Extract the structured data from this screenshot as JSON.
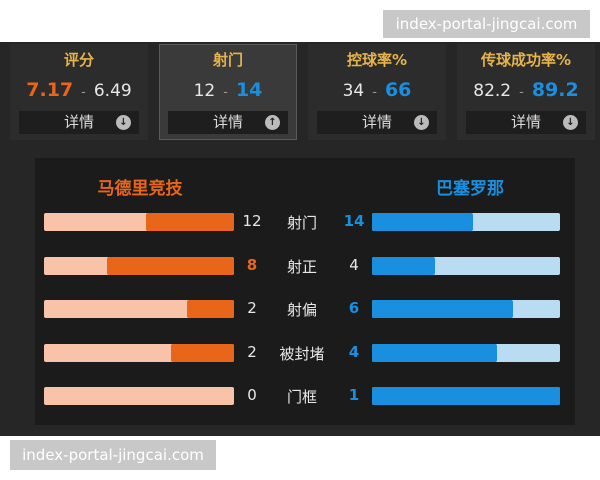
{
  "watermark_top": "index-portal-jingcai.com",
  "detail_button": "详情",
  "separator": "-",
  "selected_summary": 1,
  "colors": {
    "home": "#e8651a",
    "home_light": "#f8c3a8",
    "away": "#1a8fe0",
    "away_light": "#b9dcf3",
    "title": "#e6b44c"
  },
  "summary": [
    {
      "label": "评分",
      "home": 7.17,
      "away": 6.49
    },
    {
      "label": "射门",
      "home": 12,
      "away": 14
    },
    {
      "label": "控球率%",
      "home": 34,
      "away": 66
    },
    {
      "label": "传球成功率%",
      "home": 82.2,
      "away": 89.2
    }
  ],
  "teams": {
    "home": "马德里竞技",
    "away": "巴塞罗那"
  },
  "stats": [
    {
      "label": "射门",
      "home": 12,
      "away": 14
    },
    {
      "label": "射正",
      "home": 8,
      "away": 4
    },
    {
      "label": "射偏",
      "home": 2,
      "away": 6
    },
    {
      "label": "被封堵",
      "home": 2,
      "away": 4
    },
    {
      "label": "门框",
      "home": 0,
      "away": 1
    }
  ],
  "watermark_bottom": "index-portal-jingcai.com"
}
